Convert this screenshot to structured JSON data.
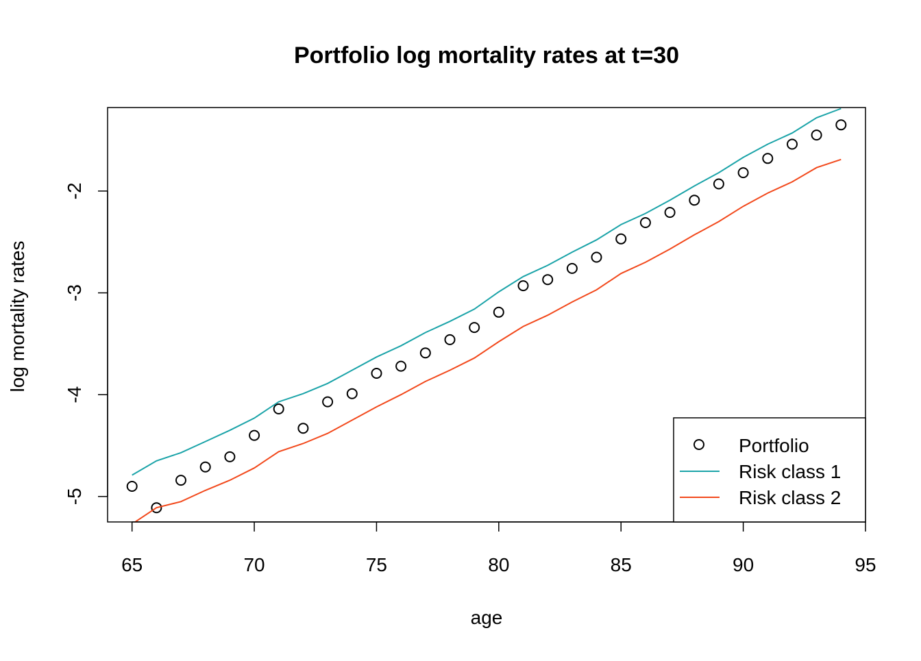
{
  "chart_data": {
    "type": "line",
    "title": "Portfolio log mortality rates at t=30",
    "xlabel": "age",
    "ylabel": "log mortality rates",
    "xlim": [
      64,
      95
    ],
    "ylim": [
      -5.25,
      -1.18
    ],
    "x_ticks": [
      65,
      70,
      75,
      80,
      85,
      90,
      95
    ],
    "y_ticks": [
      -2,
      -3,
      -4,
      -5
    ],
    "legend_position": "bottom-right",
    "grid": false,
    "x": [
      65,
      66,
      67,
      68,
      69,
      70,
      71,
      72,
      73,
      74,
      75,
      76,
      77,
      78,
      79,
      80,
      81,
      82,
      83,
      84,
      85,
      86,
      87,
      88,
      89,
      90,
      91,
      92,
      93,
      94
    ],
    "series": [
      {
        "name": "Portfolio",
        "style": "points",
        "color": "#000000",
        "values": [
          -4.9,
          -5.11,
          -4.84,
          -4.71,
          -4.61,
          -4.4,
          -4.14,
          -4.33,
          -4.07,
          -3.99,
          -3.79,
          -3.72,
          -3.59,
          -3.46,
          -3.34,
          -3.19,
          -2.93,
          -2.87,
          -2.76,
          -2.65,
          -2.47,
          -2.31,
          -2.21,
          -2.09,
          -1.93,
          -1.82,
          -1.68,
          -1.54,
          -1.45,
          -1.35
        ]
      },
      {
        "name": "Risk class 1",
        "style": "line",
        "color": "#1aa3a8",
        "values": [
          -4.79,
          -4.65,
          -4.57,
          -4.46,
          -4.35,
          -4.23,
          -4.07,
          -3.99,
          -3.89,
          -3.76,
          -3.63,
          -3.52,
          -3.39,
          -3.28,
          -3.16,
          -2.99,
          -2.84,
          -2.73,
          -2.6,
          -2.48,
          -2.33,
          -2.22,
          -2.09,
          -1.95,
          -1.82,
          -1.67,
          -1.54,
          -1.43,
          -1.28,
          -1.19
        ]
      },
      {
        "name": "Risk class 2",
        "style": "line",
        "color": "#f2481b",
        "values": [
          -5.27,
          -5.11,
          -5.05,
          -4.94,
          -4.84,
          -4.72,
          -4.56,
          -4.48,
          -4.38,
          -4.25,
          -4.12,
          -4.0,
          -3.87,
          -3.76,
          -3.64,
          -3.48,
          -3.33,
          -3.22,
          -3.09,
          -2.97,
          -2.81,
          -2.7,
          -2.57,
          -2.43,
          -2.3,
          -2.15,
          -2.02,
          -1.91,
          -1.77,
          -1.69
        ]
      }
    ]
  }
}
